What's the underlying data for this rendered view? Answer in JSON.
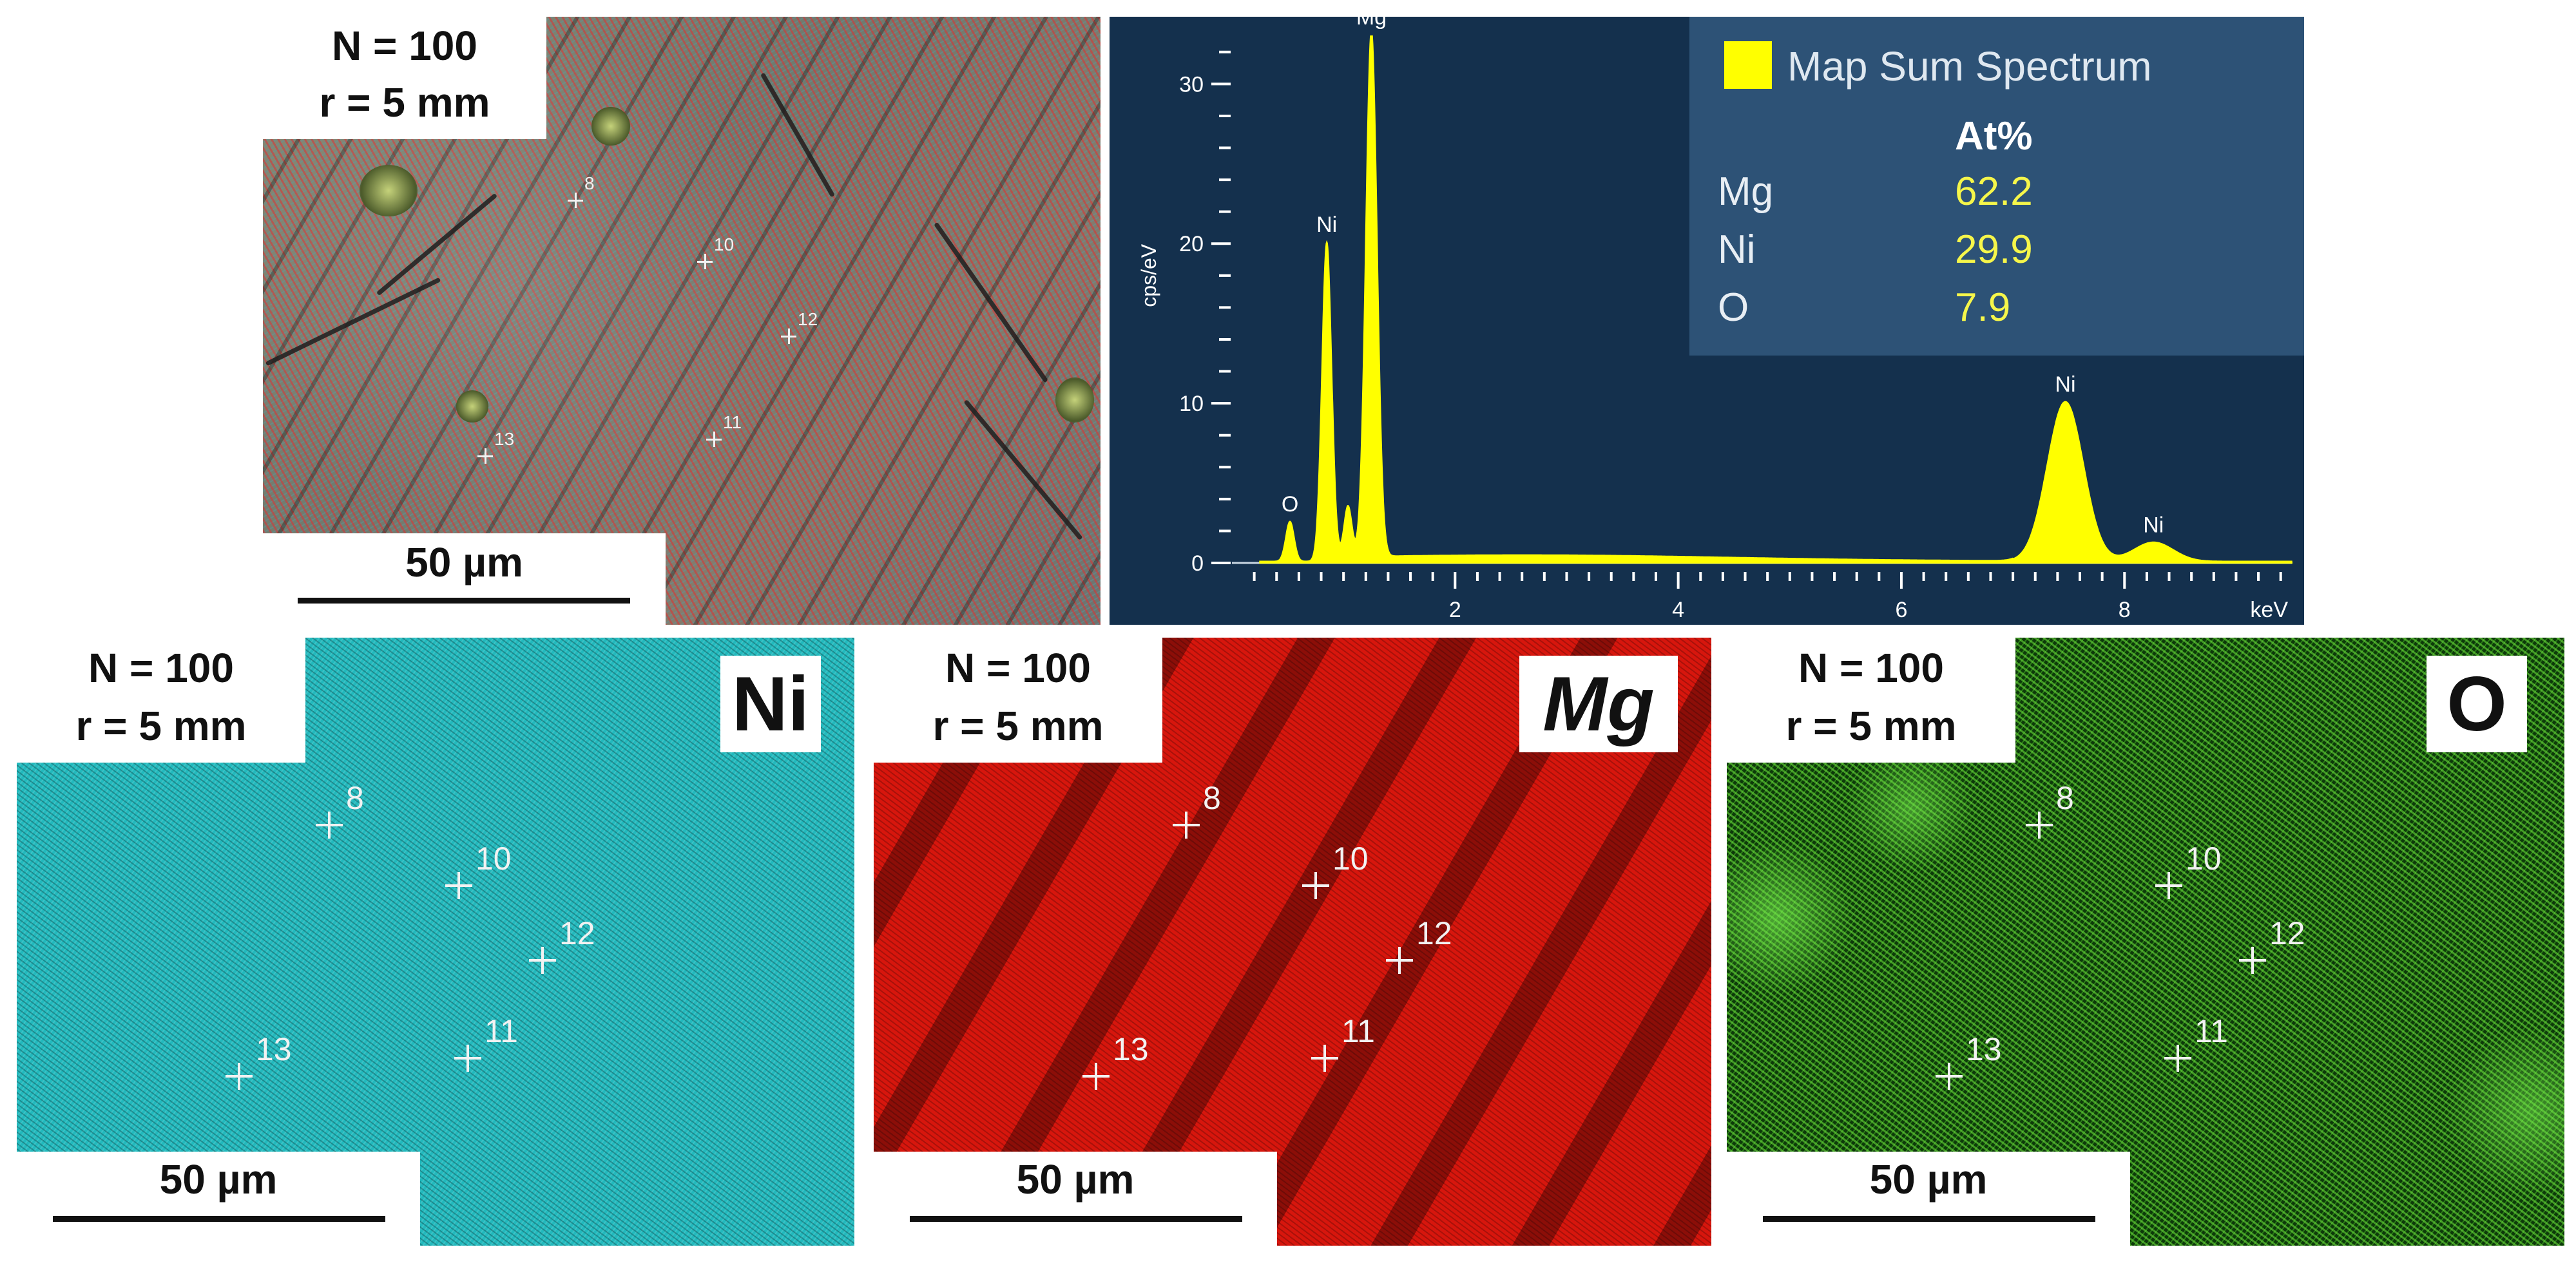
{
  "top_map": {
    "condition": {
      "line1": "N = 100",
      "line2": "r = 5 mm"
    },
    "scale": "50 µm",
    "markers": [
      "8",
      "10",
      "12",
      "11",
      "13"
    ]
  },
  "spectrum": {
    "legend": {
      "title": "Map Sum Spectrum",
      "column_header": "At%"
    },
    "composition": [
      {
        "element": "Mg",
        "value": "62.2"
      },
      {
        "element": "Ni",
        "value": "29.9"
      },
      {
        "element": "O",
        "value": "7.9"
      }
    ],
    "colors": {
      "background": "#14304d",
      "legend_background": "#2d5276",
      "trace": "#ffff00",
      "values": "#f6f64a"
    }
  },
  "chart_data": {
    "type": "area",
    "xlabel": "keV",
    "ylabel": "cps/eV",
    "xlim": [
      0,
      9.5
    ],
    "ylim": [
      0,
      33
    ],
    "x_ticks": [
      2,
      4,
      6,
      8
    ],
    "y_ticks": [
      0,
      10,
      20,
      30
    ],
    "series": [
      {
        "name": "Map Sum Spectrum",
        "color": "#ffff00"
      }
    ],
    "peaks": [
      {
        "label": "O",
        "x": 0.52,
        "y": 2.5
      },
      {
        "label": "Ni",
        "x": 0.85,
        "y": 20
      },
      {
        "label": "Mg",
        "x": 1.25,
        "y": 33
      },
      {
        "label": "Ni",
        "x": 7.47,
        "y": 10
      },
      {
        "label": "Ni",
        "x": 8.26,
        "y": 1.2
      }
    ],
    "grid": false
  },
  "maps": [
    {
      "element": "Ni",
      "condition": {
        "line1": "N = 100",
        "line2": "r = 5 mm"
      },
      "scale": "50 µm",
      "color": "#22b9bd"
    },
    {
      "element": "Mg",
      "condition": {
        "line1": "N = 100",
        "line2": "r = 5 mm"
      },
      "scale": "50 µm",
      "color": "#d7160d"
    },
    {
      "element": "O",
      "condition": {
        "line1": "N = 100",
        "line2": "r = 5 mm"
      },
      "scale": "50 µm",
      "color": "#1a8a12"
    }
  ],
  "map_markers": [
    "8",
    "10",
    "12",
    "11",
    "13"
  ]
}
